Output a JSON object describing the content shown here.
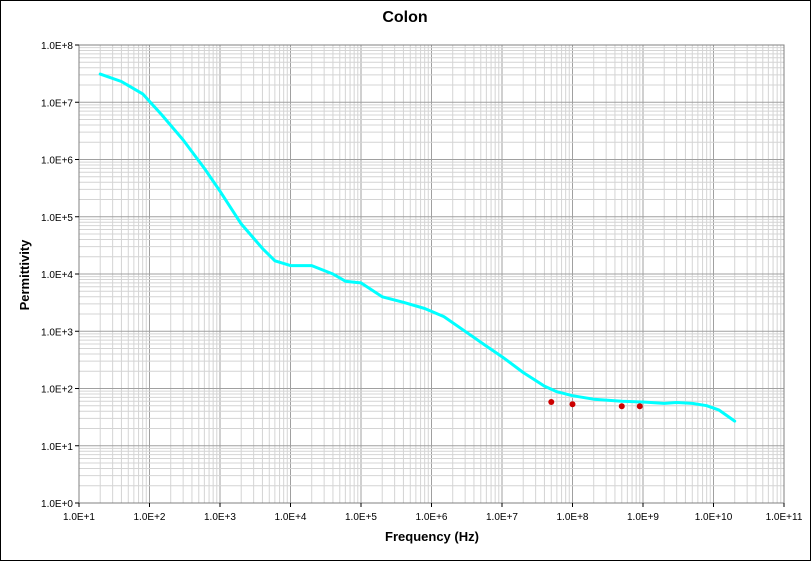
{
  "chart_data": {
    "type": "line",
    "title": "Colon",
    "xlabel": "Frequency (Hz)",
    "ylabel": "Permittivity",
    "xscale": "log",
    "yscale": "log",
    "xlim": [
      10,
      100000000000
    ],
    "ylim": [
      1,
      100000000
    ],
    "grid": true,
    "x_tick_labels": [
      "1.0E+1",
      "1.0E+2",
      "1.0E+3",
      "1.0E+4",
      "1.0E+5",
      "1.0E+6",
      "1.0E+7",
      "1.0E+8",
      "1.0E+9",
      "1.0E+10",
      "1.0E+11"
    ],
    "y_tick_labels": [
      "1.0E+0",
      "1.0E+1",
      "1.0E+2",
      "1.0E+3",
      "1.0E+4",
      "1.0E+5",
      "1.0E+6",
      "1.0E+7",
      "1.0E+8"
    ],
    "series": [
      {
        "color": "#00ffff",
        "style": "line",
        "points": [
          [
            20,
            31000000
          ],
          [
            40,
            23000000
          ],
          [
            80,
            14000000
          ],
          [
            150,
            6000000
          ],
          [
            300,
            2200000
          ],
          [
            600,
            700000
          ],
          [
            1000,
            280000
          ],
          [
            2000,
            75000
          ],
          [
            4000,
            28000
          ],
          [
            6000,
            17000
          ],
          [
            10000,
            14000
          ],
          [
            20000,
            14000
          ],
          [
            40000,
            10000
          ],
          [
            60000,
            7500
          ],
          [
            80000,
            7200
          ],
          [
            100000,
            7000
          ],
          [
            200000,
            4000
          ],
          [
            400000,
            3200
          ],
          [
            800000,
            2500
          ],
          [
            1500000,
            1800
          ],
          [
            3000000,
            1000
          ],
          [
            6000000,
            550
          ],
          [
            10000000,
            360
          ],
          [
            20000000,
            190
          ],
          [
            40000000,
            110
          ],
          [
            60000000,
            88
          ],
          [
            100000000,
            75
          ],
          [
            200000000,
            65
          ],
          [
            500000000,
            60
          ],
          [
            1000000000,
            58
          ],
          [
            2000000000,
            55
          ],
          [
            3000000000,
            57
          ],
          [
            5000000000,
            55
          ],
          [
            8000000000,
            50
          ],
          [
            12000000000,
            42
          ],
          [
            20000000000,
            27
          ]
        ]
      },
      {
        "color": "#cc0000",
        "style": "points",
        "points": [
          [
            50000000,
            58
          ],
          [
            100000000,
            53
          ],
          [
            500000000,
            49
          ],
          [
            900000000,
            49
          ]
        ]
      }
    ]
  }
}
